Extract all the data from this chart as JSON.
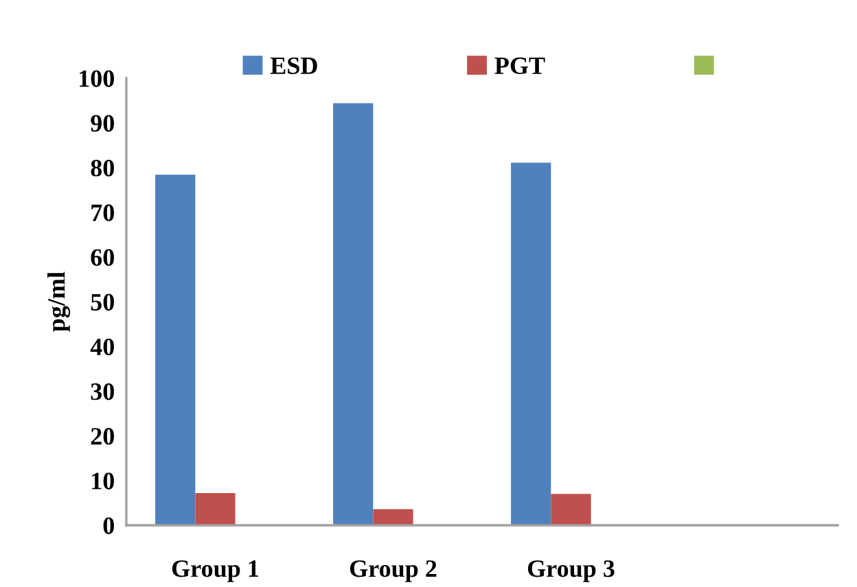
{
  "chart_data": {
    "type": "bar",
    "ylabel": "pg/ml",
    "categories": [
      "Group 1",
      "Group 2",
      "Group 3",
      null
    ],
    "series": [
      {
        "name": "ESD",
        "color": "#4f81bd",
        "values": [
          78.4,
          94.4,
          81.1,
          null
        ]
      },
      {
        "name": "PGT",
        "color": "#c0504d",
        "values": [
          7.2,
          3.6,
          7.0,
          null
        ]
      },
      {
        "color": "#9bbb59",
        "values": [
          null,
          null,
          null,
          null
        ]
      }
    ],
    "ylim": [
      0,
      100
    ],
    "yticks": [
      0,
      10,
      20,
      30,
      40,
      50,
      60,
      70,
      80,
      90,
      100
    ],
    "grid": false,
    "legend": "top"
  }
}
